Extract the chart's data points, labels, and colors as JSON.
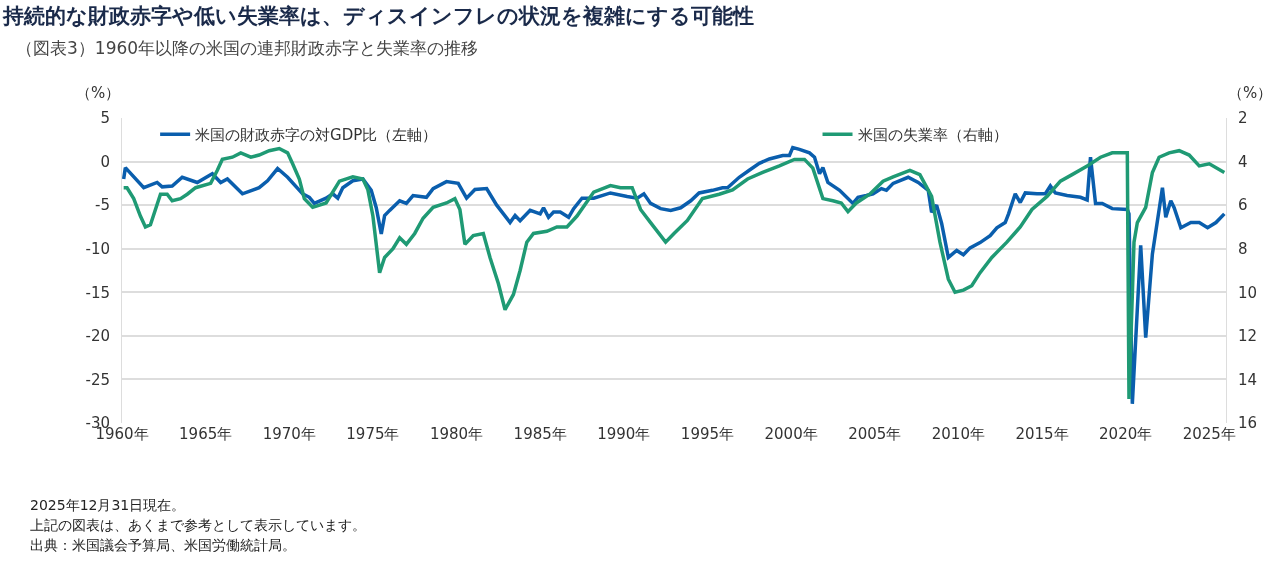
{
  "chart_data": {
    "type": "line",
    "title": "持続的な財政赤字や低い失業率は、ディスインフレの状況を複雑にする可能性",
    "subtitle": "（図表3）1960年以降の米国の連邦財政赤字と失業率の推移",
    "ylabel": "（%）",
    "y2label": "（%）",
    "series": [
      {
        "name": "米国の財政赤字の対GDP比（左軸）",
        "color": "#0a5ead",
        "axis": "y",
        "x": [
          1960.1,
          1960.2,
          1961.3,
          1962.1,
          1962.4,
          1963.0,
          1963.6,
          1964.5,
          1965.4,
          1965.9,
          1966.3,
          1967.2,
          1968.2,
          1968.7,
          1969.3,
          1969.9,
          1970.8,
          1971.2,
          1971.5,
          1972.2,
          1972.6,
          1972.9,
          1973.2,
          1973.8,
          1974.4,
          1974.9,
          1975.2,
          1975.5,
          1975.7,
          1976.0,
          1976.6,
          1977.0,
          1977.4,
          1978.2,
          1978.6,
          1979.4,
          1980.1,
          1980.6,
          1981.1,
          1981.8,
          1982.4,
          1983.2,
          1983.5,
          1983.8,
          1984.4,
          1985.0,
          1985.2,
          1985.5,
          1985.8,
          1986.2,
          1986.7,
          1987.0,
          1987.5,
          1988.2,
          1989.2,
          1990.2,
          1990.8,
          1991.2,
          1991.6,
          1992.2,
          1992.8,
          1993.4,
          1994.0,
          1994.5,
          1995.3,
          1995.9,
          1996.2,
          1996.9,
          1997.5,
          1998.1,
          1998.7,
          1999.5,
          1999.9,
          2000.1,
          2000.5,
          2001.1,
          2001.4,
          2001.7,
          2001.9,
          2002.2,
          2002.9,
          2003.7,
          2004.0,
          2004.5,
          2004.9,
          2005.4,
          2005.7,
          2006.1,
          2007.0,
          2007.6,
          2008.2,
          2008.4,
          2008.7,
          2009.0,
          2009.4,
          2009.9,
          2010.3,
          2010.7,
          2011.3,
          2011.9,
          2012.3,
          2012.8,
          2013.0,
          2013.4,
          2013.7,
          2014.0,
          2014.7,
          2015.2,
          2015.5,
          2015.8,
          2016.5,
          2017.3,
          2017.7,
          2017.9,
          2018.2,
          2018.6,
          2019.2,
          2020.1,
          2020.2,
          2020.4,
          2020.9,
          2021.2,
          2021.6,
          2022.2,
          2022.4,
          2022.7,
          2022.9,
          2023.3,
          2023.9,
          2024.4,
          2024.9,
          2025.4,
          2025.9
        ],
        "values": [
          -2.0,
          -0.7,
          -3.0,
          -2.4,
          -2.9,
          -2.8,
          -1.8,
          -2.4,
          -1.4,
          -2.4,
          -2.0,
          -3.7,
          -3.0,
          -2.2,
          -0.8,
          -1.8,
          -3.7,
          -4.1,
          -4.8,
          -4.2,
          -3.7,
          -4.2,
          -3.0,
          -2.2,
          -2.0,
          -3.3,
          -5.3,
          -8.3,
          -6.2,
          -5.6,
          -4.5,
          -4.8,
          -3.9,
          -4.1,
          -3.1,
          -2.3,
          -2.5,
          -4.2,
          -3.2,
          -3.1,
          -5.0,
          -7.0,
          -6.2,
          -6.8,
          -5.6,
          -6.0,
          -5.3,
          -6.4,
          -5.8,
          -5.8,
          -6.4,
          -5.4,
          -4.2,
          -4.2,
          -3.6,
          -4.0,
          -4.2,
          -3.7,
          -4.8,
          -5.4,
          -5.6,
          -5.3,
          -4.5,
          -3.6,
          -3.3,
          -3.0,
          -3.0,
          -1.8,
          -1.0,
          -0.2,
          0.3,
          0.7,
          0.7,
          1.6,
          1.4,
          1.0,
          0.5,
          -1.4,
          -0.7,
          -2.4,
          -3.3,
          -4.8,
          -4.1,
          -3.9,
          -3.7,
          -3.1,
          -3.3,
          -2.5,
          -1.8,
          -2.4,
          -3.3,
          -5.8,
          -5.0,
          -7.1,
          -11.0,
          -10.2,
          -10.7,
          -9.9,
          -9.3,
          -8.5,
          -7.6,
          -7.0,
          -6.0,
          -3.7,
          -4.7,
          -3.6,
          -3.7,
          -3.7,
          -2.8,
          -3.6,
          -3.9,
          -4.1,
          -4.4,
          0.5,
          -4.8,
          -4.8,
          -5.4,
          -5.5,
          -6.0,
          -27.8,
          -9.6,
          -20.2,
          -10.6,
          -3.0,
          -6.4,
          -4.5,
          -5.3,
          -7.6,
          -7.0,
          -7.0,
          -7.6,
          -7.0,
          -6.0
        ]
      },
      {
        "name": "米国の失業率（右軸）",
        "color": "#1f9a74",
        "axis": "y2",
        "x": [
          1960.1,
          1960.3,
          1960.7,
          1961.1,
          1961.4,
          1961.7,
          1962.0,
          1962.3,
          1962.7,
          1963.0,
          1963.5,
          1963.9,
          1964.4,
          1965.3,
          1965.7,
          1966.0,
          1966.6,
          1967.1,
          1967.7,
          1968.2,
          1968.8,
          1969.4,
          1969.9,
          1970.2,
          1970.6,
          1970.9,
          1971.4,
          1972.2,
          1973.0,
          1973.8,
          1974.4,
          1974.7,
          1975.0,
          1975.4,
          1975.7,
          1976.2,
          1976.6,
          1977.0,
          1977.5,
          1978.0,
          1978.6,
          1979.4,
          1979.9,
          1980.2,
          1980.5,
          1981.0,
          1981.6,
          1982.0,
          1982.5,
          1982.9,
          1983.4,
          1983.8,
          1984.2,
          1984.6,
          1985.4,
          1986.0,
          1986.6,
          1987.2,
          1988.2,
          1989.2,
          1989.8,
          1990.5,
          1991.0,
          1991.6,
          1992.5,
          1993.0,
          1993.8,
          1994.7,
          1995.7,
          1996.5,
          1997.4,
          1998.3,
          1999.3,
          2000.2,
          2000.8,
          2001.3,
          2001.9,
          2002.5,
          2003.0,
          2003.4,
          2003.9,
          2004.7,
          2005.5,
          2006.1,
          2007.1,
          2007.7,
          2008.4,
          2008.9,
          2009.4,
          2009.8,
          2010.3,
          2010.8,
          2011.3,
          2012.0,
          2012.9,
          2013.7,
          2014.4,
          2015.3,
          2016.1,
          2016.8,
          2017.7,
          2018.5,
          2019.2,
          2020.1,
          2020.2,
          2020.5,
          2020.7,
          2021.2,
          2021.6,
          2022.0,
          2022.6,
          2023.2,
          2023.8,
          2024.4,
          2025.0,
          2025.9
        ],
        "values": [
          5.2,
          5.2,
          5.7,
          6.5,
          7.0,
          6.9,
          6.2,
          5.5,
          5.5,
          5.8,
          5.7,
          5.5,
          5.2,
          5.0,
          4.4,
          3.9,
          3.8,
          3.6,
          3.8,
          3.7,
          3.5,
          3.4,
          3.6,
          4.1,
          4.8,
          5.7,
          6.1,
          5.9,
          4.9,
          4.7,
          4.8,
          5.3,
          6.5,
          9.1,
          8.4,
          8.0,
          7.5,
          7.8,
          7.3,
          6.6,
          6.1,
          5.9,
          5.7,
          6.2,
          7.8,
          7.4,
          7.3,
          8.4,
          9.6,
          10.8,
          10.1,
          9.0,
          7.7,
          7.3,
          7.2,
          7.0,
          7.0,
          6.5,
          5.4,
          5.1,
          5.2,
          5.2,
          6.2,
          6.8,
          7.7,
          7.3,
          6.7,
          5.7,
          5.5,
          5.3,
          4.8,
          4.5,
          4.2,
          3.9,
          3.9,
          4.3,
          5.7,
          5.8,
          5.9,
          6.3,
          5.9,
          5.5,
          4.9,
          4.7,
          4.4,
          4.6,
          5.6,
          7.7,
          9.4,
          10.0,
          9.9,
          9.7,
          9.1,
          8.4,
          7.7,
          7.0,
          6.2,
          5.6,
          4.9,
          4.6,
          4.2,
          3.8,
          3.6,
          3.6,
          14.9,
          7.7,
          6.8,
          6.1,
          4.5,
          3.8,
          3.6,
          3.5,
          3.7,
          4.2,
          4.1,
          4.5
        ]
      }
    ],
    "xlim": [
      1960,
      2026
    ],
    "xticks": [
      {
        "value": 1960,
        "label": "1960年"
      },
      {
        "value": 1965,
        "label": "1965年"
      },
      {
        "value": 1970,
        "label": "1970年"
      },
      {
        "value": 1975,
        "label": "1975年"
      },
      {
        "value": 1980,
        "label": "1980年"
      },
      {
        "value": 1985,
        "label": "1985年"
      },
      {
        "value": 1990,
        "label": "1990年"
      },
      {
        "value": 1995,
        "label": "1995年"
      },
      {
        "value": 2000,
        "label": "2000年"
      },
      {
        "value": 2005,
        "label": "2005年"
      },
      {
        "value": 2010,
        "label": "2010年"
      },
      {
        "value": 2015,
        "label": "2015年"
      },
      {
        "value": 2020,
        "label": "2020年"
      },
      {
        "value": 2025,
        "label": "2025年"
      }
    ],
    "ylim": [
      -30,
      5
    ],
    "yticks": [
      -30,
      -25,
      -20,
      -15,
      -10,
      -5,
      0,
      5
    ],
    "y2lim": [
      16,
      2
    ],
    "y2ticks": [
      2,
      4,
      6,
      8,
      10,
      12,
      14,
      16
    ],
    "grid": "y",
    "legend": "top",
    "marker": "none",
    "line_style": "solid",
    "annotations": [
      "2025年12月31日現在。",
      "上記の図表は、あくまで参考として表示しています。",
      "出典：米国議会予算局、米国労働統計局。"
    ]
  }
}
